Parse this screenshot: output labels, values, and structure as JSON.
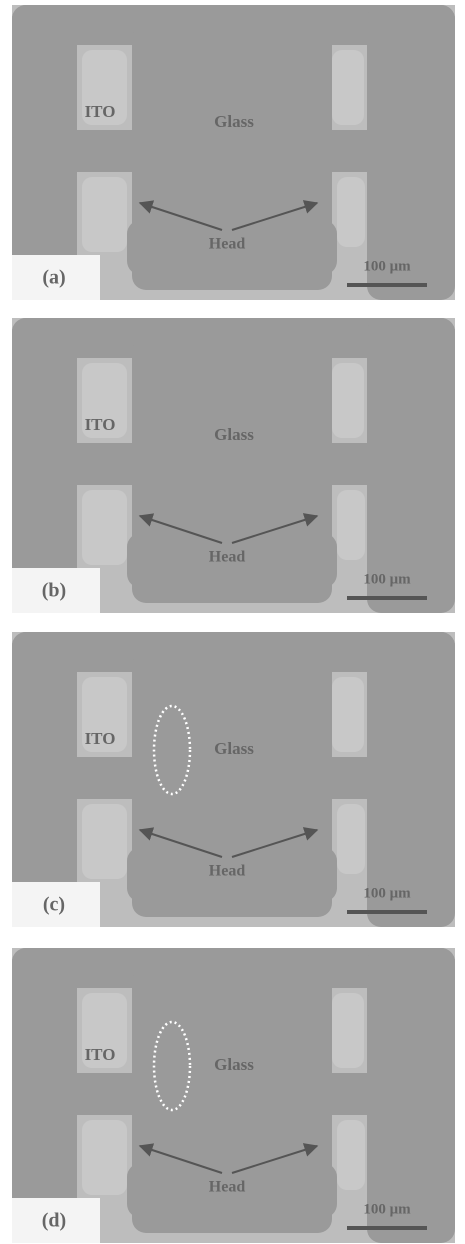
{
  "panels": [
    {
      "label": "(a)",
      "ito": "ITO",
      "glass": "Glass",
      "head": "Head",
      "scale": "100 μm"
    },
    {
      "label": "(b)",
      "ito": "ITO",
      "glass": "Glass",
      "head": "Head",
      "scale": "100 μm"
    },
    {
      "label": "(c)",
      "ito": "ITO",
      "glass": "Glass",
      "head": "Head",
      "scale": "100 μm"
    },
    {
      "label": "(d)",
      "ito": "ITO",
      "glass": "Glass",
      "head": "Head",
      "scale": "100 μm"
    }
  ]
}
